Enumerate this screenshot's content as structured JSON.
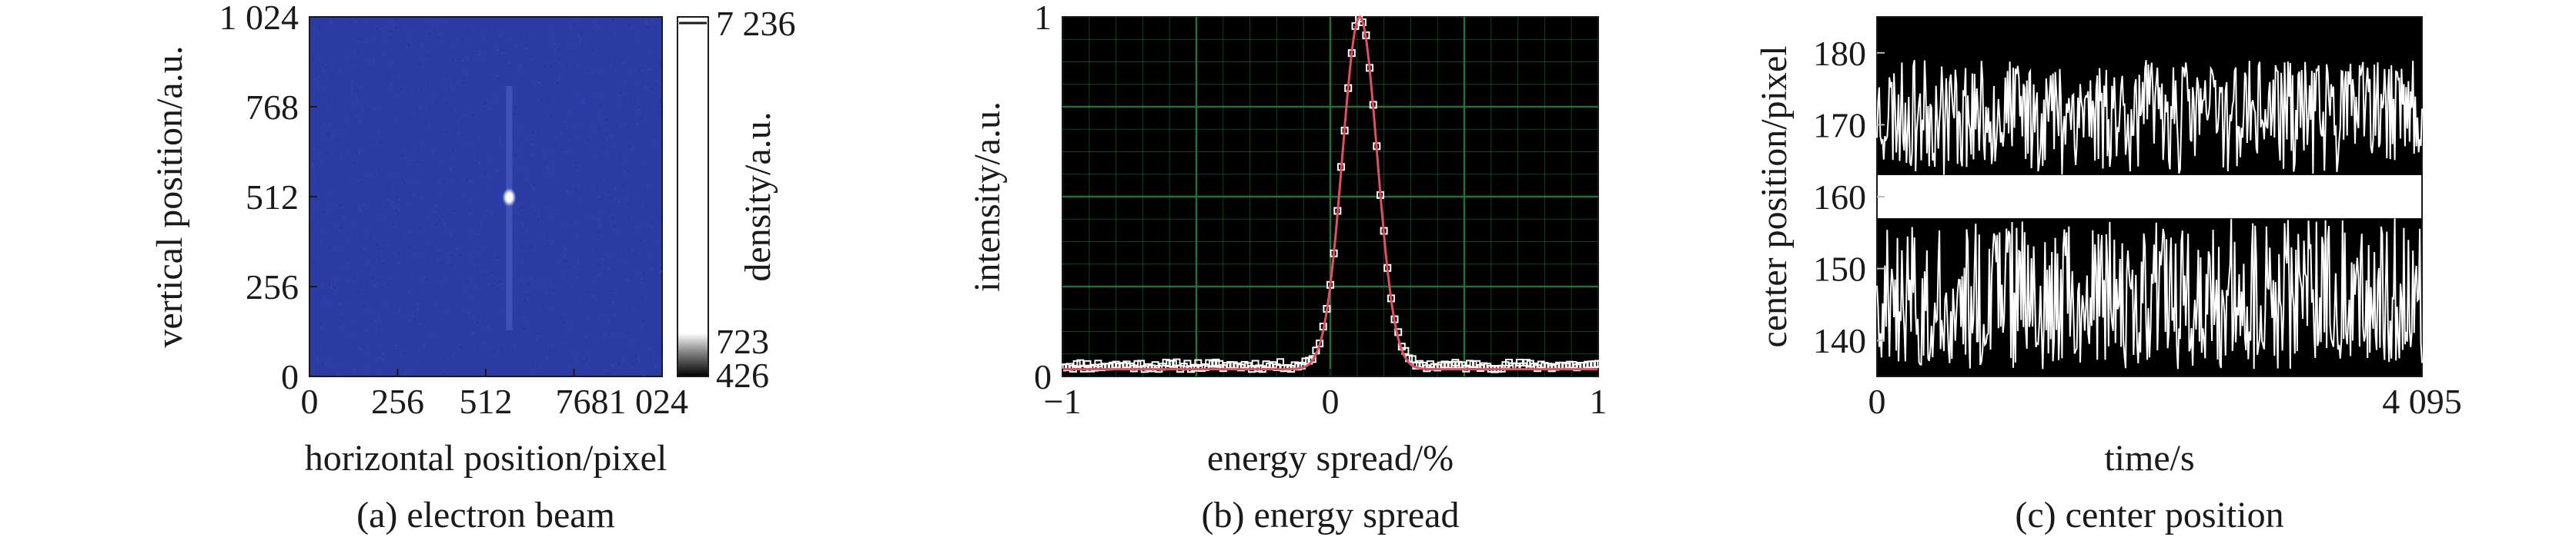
{
  "chart_data": [
    {
      "id": "a",
      "type": "heatmap",
      "caption": "(a) electron beam",
      "xlabel": "horizontal position/pixel",
      "ylabel": "vertical position/a.u.",
      "xlim": [
        0,
        1024
      ],
      "ylim": [
        0,
        1024
      ],
      "xticks": [
        "0",
        "256",
        "512",
        "7681 024"
      ],
      "xtick_values": [
        0,
        256,
        512,
        768
      ],
      "yticks": [
        "0",
        "256",
        "512",
        "768",
        "1 024"
      ],
      "ytick_values": [
        0,
        256,
        512,
        768,
        1024
      ],
      "spot": {
        "x": 580,
        "y": 510
      },
      "background_color": "#2b3ca4",
      "colorbar": {
        "label": "density/a.u.",
        "ticks": [
          "7 236",
          "723",
          "426"
        ],
        "tick_values": [
          7236,
          723,
          426
        ],
        "range": [
          426,
          7236
        ]
      }
    },
    {
      "id": "b",
      "type": "line",
      "caption": "(b) energy spread",
      "xlabel": "energy spread/%",
      "ylabel": "intensity/a.u.",
      "xlim": [
        -1,
        1
      ],
      "ylim": [
        0,
        1
      ],
      "xticks": [
        "−1",
        "0",
        "1"
      ],
      "xtick_values": [
        -1,
        0,
        1
      ],
      "yticks": [
        "0",
        "1"
      ],
      "ytick_values": [
        0,
        1
      ],
      "grid": true,
      "background_color": "#000000",
      "grid_color": "#1f7a3a",
      "series": [
        {
          "style": "markers",
          "color": "#ffffff",
          "peak_x": 0.11,
          "peak_y": 1.0,
          "baseline": 0.03,
          "sigma": 0.065
        },
        {
          "style": "fit",
          "color": "#e05060",
          "peak_x": 0.11,
          "peak_y": 1.0,
          "baseline": 0.02,
          "sigma": 0.065
        }
      ]
    },
    {
      "id": "c",
      "type": "line",
      "caption": "(c) center position",
      "xlabel": "time/s",
      "ylabel": "center position/pixel",
      "xlim": [
        0,
        4095
      ],
      "ylim": [
        135,
        185
      ],
      "xticks": [
        "0",
        "4 095"
      ],
      "xtick_values": [
        0,
        4095
      ],
      "yticks": [
        "140",
        "150",
        "160",
        "170",
        "180"
      ],
      "ytick_values": [
        140,
        150,
        160,
        170,
        180
      ],
      "background_color": "#000000",
      "series": [
        {
          "color": "#ffffff",
          "mean": 160,
          "upper_range": [
            163,
            179
          ],
          "lower_range": [
            136,
            157
          ]
        }
      ]
    }
  ]
}
